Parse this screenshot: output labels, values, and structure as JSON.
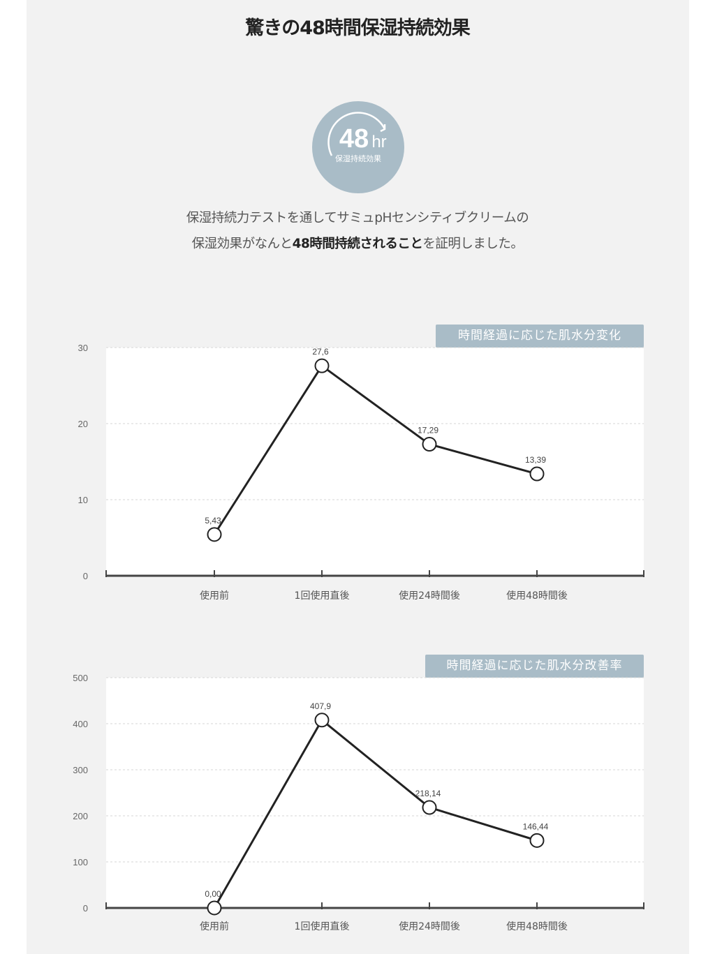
{
  "header": {
    "title": "驚きの48時間保湿持続効果"
  },
  "badge": {
    "big": "48",
    "unit": "hr",
    "sub": "保湿持続効果"
  },
  "description": {
    "line1": "保湿持続力テストを通してサミュpHセンシティブクリームの",
    "line2_pre": "保湿効果がなんと",
    "line2_bold": "48時間持続されること",
    "line2_post": "を証明しました。"
  },
  "colors": {
    "panel": "#f2f2f2",
    "tag": "#a9bcc7",
    "badge": "#a9bcc7",
    "line": "#222222"
  },
  "chart_data": [
    {
      "type": "line",
      "title": "時間経過に応じた肌水分変化",
      "categories": [
        "使用前",
        "1回使用直後",
        "使用24時間後",
        "使用48時間後"
      ],
      "series": [
        {
          "values": [
            5.43,
            27.6,
            17.29,
            13.39
          ]
        }
      ],
      "point_labels": [
        "5,43",
        "27,6",
        "17,29",
        "13,39"
      ],
      "ylim": [
        0,
        30
      ],
      "yticks": [
        0,
        10,
        20,
        30
      ],
      "grid": true,
      "legend": "none"
    },
    {
      "type": "line",
      "title": "時間経過に応じた肌水分改善率",
      "categories": [
        "使用前",
        "1回使用直後",
        "使用24時間後",
        "使用48時間後"
      ],
      "series": [
        {
          "values": [
            0.0,
            407.9,
            218.14,
            146.44
          ]
        }
      ],
      "point_labels": [
        "0,00",
        "407,9",
        "218,14",
        "146,44"
      ],
      "ylim": [
        0,
        500
      ],
      "yticks": [
        0,
        100,
        200,
        300,
        400,
        500
      ],
      "grid": true,
      "legend": "none"
    }
  ]
}
